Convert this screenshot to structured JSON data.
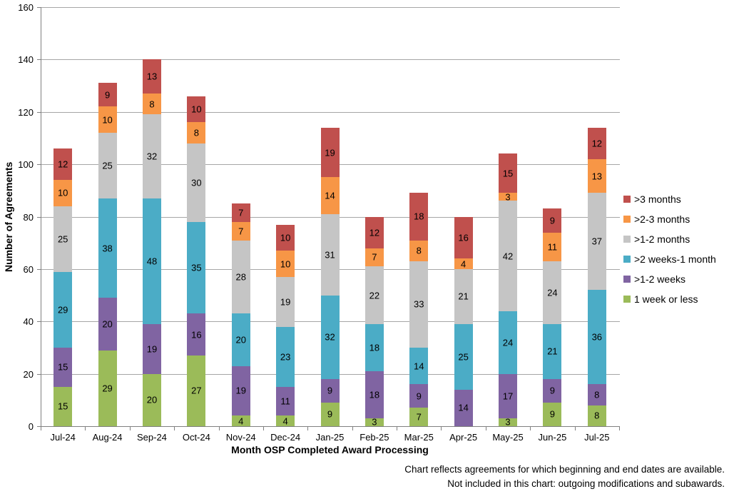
{
  "chart_data": {
    "type": "bar",
    "stacked": true,
    "xlabel": "Month OSP Completed Award Processing",
    "ylabel": "Number of Agreements",
    "ylim": [
      0,
      160
    ],
    "ytick_step": 20,
    "yticks": [
      0,
      20,
      40,
      60,
      80,
      100,
      120,
      140,
      160
    ],
    "grid": true,
    "legend_position": "right",
    "categories": [
      "Jul-24",
      "Aug-24",
      "Sep-24",
      "Oct-24",
      "Nov-24",
      "Dec-24",
      "Jan-25",
      "Feb-25",
      "Mar-25",
      "Apr-25",
      "May-25",
      "Jun-25",
      "Jul-25"
    ],
    "series": [
      {
        "name": "1 week or less",
        "color": "#9BBB59",
        "values": [
          15,
          29,
          20,
          27,
          4,
          4,
          9,
          3,
          7,
          0,
          3,
          9,
          8
        ]
      },
      {
        "name": ">1-2 weeks",
        "color": "#8064A2",
        "values": [
          15,
          20,
          19,
          16,
          19,
          11,
          9,
          18,
          9,
          14,
          17,
          9,
          8
        ]
      },
      {
        "name": ">2 weeks-1 month",
        "color": "#4BACC6",
        "values": [
          29,
          38,
          48,
          35,
          20,
          23,
          32,
          18,
          14,
          25,
          24,
          21,
          36
        ]
      },
      {
        "name": ">1-2 months",
        "color": "#C5C5C5",
        "values": [
          25,
          25,
          32,
          30,
          28,
          19,
          31,
          22,
          33,
          21,
          42,
          24,
          37
        ]
      },
      {
        "name": ">2-3 months",
        "color": "#F79646",
        "values": [
          10,
          10,
          8,
          8,
          7,
          10,
          14,
          7,
          8,
          4,
          3,
          11,
          13
        ]
      },
      {
        "name": ">3 months",
        "color": "#C0504D",
        "values": [
          12,
          9,
          13,
          10,
          7,
          10,
          19,
          12,
          18,
          16,
          15,
          9,
          12
        ]
      }
    ],
    "totals": [
      106,
      131,
      140,
      126,
      85,
      77,
      114,
      80,
      89,
      80,
      104,
      83,
      114
    ],
    "axis_color": "#808080",
    "gridline_color": "#A6A6A6"
  },
  "footnote": {
    "line1": "Chart reflects agreements for which beginning and end dates are available.",
    "line2": "Not included in this chart: outgoing modifications and subawards."
  }
}
